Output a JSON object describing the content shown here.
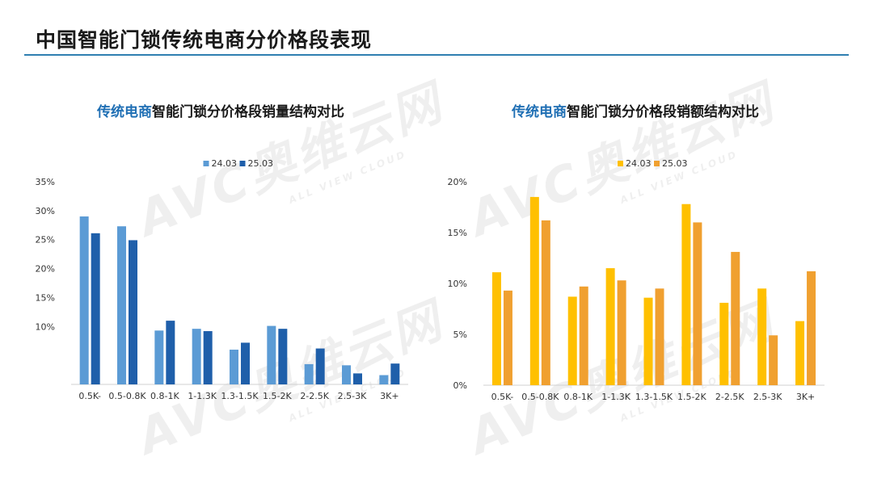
{
  "page": {
    "title": "中国智能门锁传统电商分价格段表现"
  },
  "watermark": {
    "brand": "AVC",
    "cn": "奥维云网",
    "en": "ALL VIEW CLOUD"
  },
  "chart_data": [
    {
      "type": "bar",
      "title_accent": "传统电商",
      "title_rest": "智能门锁分价格段销量结构对比",
      "categories": [
        "0.5K-",
        "0.5-0.8K",
        "0.8-1K",
        "1-1.3K",
        "1.3-1.5K",
        "1.5-2K",
        "2-2.5K",
        "2.5-3K",
        "3K+"
      ],
      "series": [
        {
          "name": "24.03",
          "color": "#5b9bd5",
          "values": [
            29.0,
            27.3,
            9.3,
            9.6,
            6.0,
            10.1,
            3.5,
            3.3,
            1.6
          ]
        },
        {
          "name": "25.03",
          "color": "#1f5faa",
          "values": [
            26.1,
            24.9,
            11.0,
            9.2,
            7.2,
            9.6,
            6.2,
            1.9,
            3.6
          ]
        }
      ],
      "yticks": [
        10,
        15,
        20,
        25,
        30,
        35
      ],
      "ytick_labels": [
        "10%",
        "15%",
        "20%",
        "25%",
        "30%",
        "35%"
      ],
      "ylim": [
        0,
        35
      ],
      "legend_position": "top-center",
      "grid": false
    },
    {
      "type": "bar",
      "title_accent": "传统电商",
      "title_rest": "智能门锁分价格段销额结构对比",
      "categories": [
        "0.5K-",
        "0.5-0.8K",
        "0.8-1K",
        "1-1.3K",
        "1.3-1.5K",
        "1.5-2K",
        "2-2.5K",
        "2.5-3K",
        "3K+"
      ],
      "series": [
        {
          "name": "24.03",
          "color": "#ffc000",
          "values": [
            11.1,
            18.5,
            8.7,
            11.5,
            8.6,
            17.8,
            8.1,
            9.5,
            6.3
          ]
        },
        {
          "name": "25.03",
          "color": "#f0a030",
          "values": [
            9.3,
            16.2,
            9.7,
            10.3,
            9.5,
            16.0,
            13.1,
            4.9,
            11.2
          ]
        }
      ],
      "yticks": [
        0,
        5,
        10,
        15,
        20
      ],
      "ytick_labels": [
        "0%",
        "5%",
        "10%",
        "15%",
        "20%"
      ],
      "ylim": [
        0,
        20
      ],
      "legend_position": "top-center",
      "grid": false
    }
  ]
}
